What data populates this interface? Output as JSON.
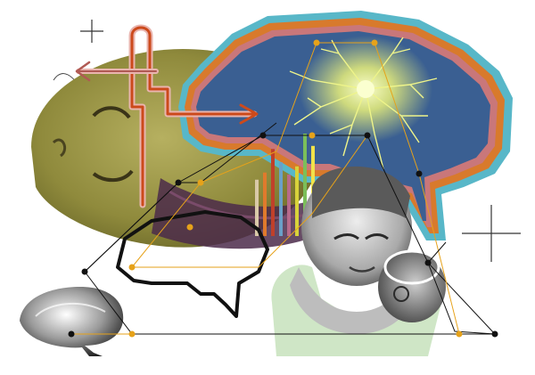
{
  "artwork": {
    "palette": {
      "background": "#ffffff",
      "olive_face": "#8f8a3c",
      "olive_light": "#b6b060",
      "hair_purple": "#4b2a4a",
      "brain_blue": "#3a5f92",
      "brain_blue_dark": "#2b4a78",
      "outline_orange": "#d87a2c",
      "outline_cyan": "#58b7c8",
      "outline_pink": "#c9777a",
      "neuron_yellow": "#e9f07a",
      "mint_hands": "#cfe6c6",
      "orange_pipe": "#cc4a1c",
      "pipe_pink": "#e9b4ae",
      "node_gold": "#e6a21a",
      "line_black": "#111111"
    },
    "bar_colors": [
      "#d9c9a8",
      "#e07a2c",
      "#c0402a",
      "#6aa0c8",
      "#b76a8a",
      "#d8d23a",
      "#7bbf5a",
      "#f1e24a"
    ],
    "bar_levels": [
      0.55,
      0.62,
      0.85,
      0.72,
      0.6,
      0.68,
      1.0,
      0.88
    ]
  }
}
